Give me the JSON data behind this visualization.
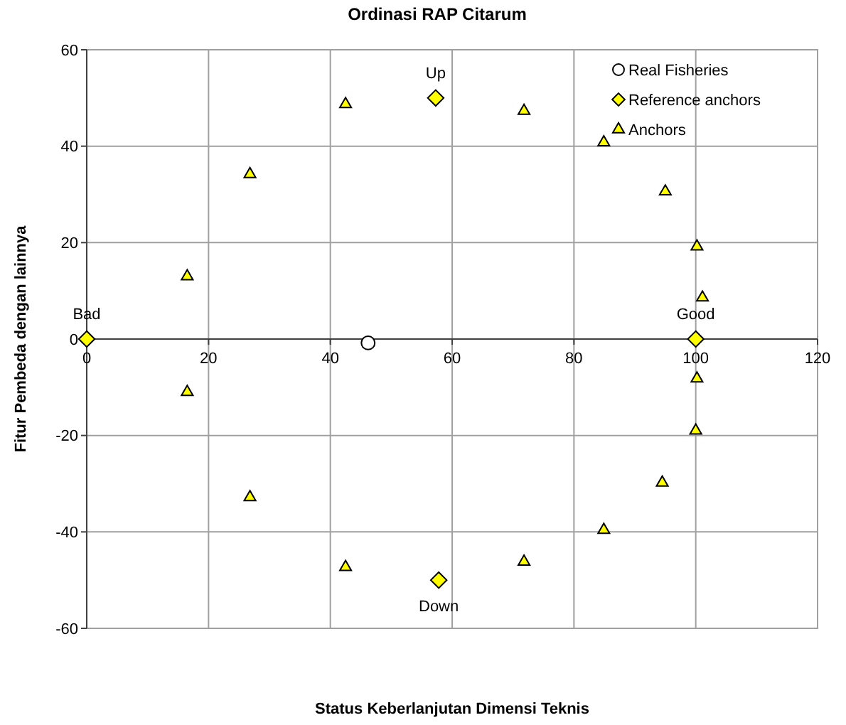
{
  "chart_data": {
    "type": "scatter",
    "title": "Ordinasi RAP Citarum",
    "xlabel": "Status Keberlanjutan Dimensi Teknis",
    "ylabel": "Fitur Pembeda dengan lainnya",
    "xlim": [
      0,
      120
    ],
    "ylim": [
      -60,
      60
    ],
    "xticks": [
      0,
      20,
      40,
      60,
      80,
      100,
      120
    ],
    "yticks": [
      -60,
      -40,
      -20,
      0,
      20,
      40,
      60
    ],
    "grid": true,
    "legend": "top right",
    "series": [
      {
        "name": "Real Fisheries",
        "color": "#ffffff",
        "marker": "circle",
        "x": [
          46.2
        ],
        "values": [
          -0.8
        ]
      },
      {
        "name": "Reference anchors",
        "color": "#ffff00",
        "marker": "diamond",
        "x": [
          0,
          100,
          57.3,
          57.8
        ],
        "values": [
          0,
          0,
          50,
          -50
        ]
      },
      {
        "name": "Anchors",
        "color": "#ffff00",
        "marker": "triangle",
        "x": [
          16.5,
          26.8,
          42.5,
          71.8,
          84.9,
          95,
          100.2,
          101.1,
          16.5,
          26.8,
          42.5,
          71.8,
          84.9,
          94.5,
          100,
          100.2
        ],
        "values": [
          13,
          34.2,
          48.7,
          47.3,
          40.8,
          30.6,
          19.2,
          8.6,
          -11,
          -32.8,
          -47.3,
          -46.2,
          -39.6,
          -29.8,
          -19,
          -8.2
        ]
      }
    ],
    "annotations": [
      {
        "text": "Bad",
        "x": 0,
        "y": 0
      },
      {
        "text": "Good",
        "x": 100,
        "y": 0
      },
      {
        "text": "Up",
        "x": 57.3,
        "y": 50
      },
      {
        "text": "Down",
        "x": 57.8,
        "y": -50
      }
    ]
  }
}
